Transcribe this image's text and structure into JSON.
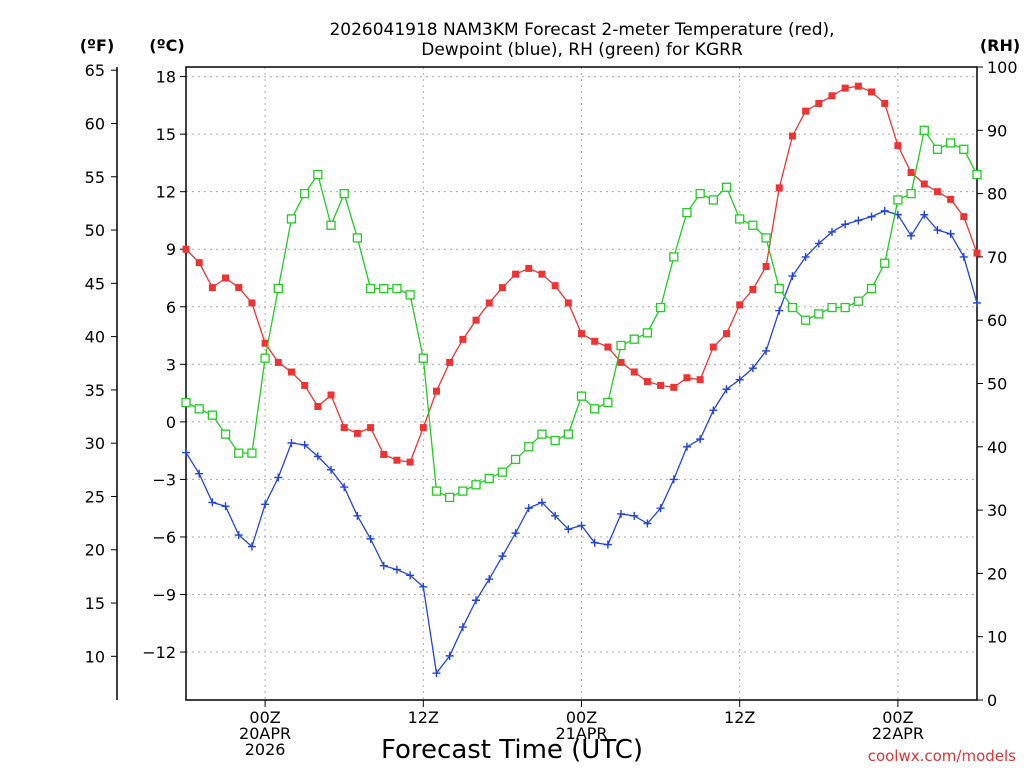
{
  "title_line1": "2026041918 NAM3KM Forecast 2-meter Temperature (red),",
  "title_line2": "Dewpoint (blue), RH (green) for KGRR",
  "units": {
    "left_f": "(ºF)",
    "left_c": "(ºC)",
    "right_rh": "(RH)"
  },
  "xlabel": "Forecast Time (UTC)",
  "watermark": "coolwx.com/models",
  "colors": {
    "temperature": "#ee3333",
    "dewpoint": "#2244dd",
    "rh": "#22cc22",
    "grid": "#aaaaaa"
  },
  "chart_data": {
    "type": "line",
    "title": "2026041918 NAM3KM Forecast 2-meter Temperature (red), Dewpoint (blue), RH (green) for KGRR",
    "xlabel": "Forecast Time (UTC)",
    "x_unit": "hours since 2026-04-19 18Z",
    "xlim": [
      0,
      60
    ],
    "grid": true,
    "x_ticks": [
      {
        "x": 6,
        "lines": [
          "00Z",
          "20APR",
          "2026"
        ]
      },
      {
        "x": 18,
        "lines": [
          "12Z"
        ]
      },
      {
        "x": 30,
        "lines": [
          "00Z",
          "21APR"
        ]
      },
      {
        "x": 42,
        "lines": [
          "12Z"
        ]
      },
      {
        "x": 54,
        "lines": [
          "00Z",
          "22APR"
        ]
      }
    ],
    "axes": {
      "celsius": {
        "label": "(ºC)",
        "ylim": [
          -14.5,
          18.5
        ],
        "ticks": [
          18,
          15,
          12,
          9,
          6,
          3,
          0,
          -3,
          -6,
          -9,
          -12
        ],
        "tick_labels": [
          "18",
          "15",
          "12",
          "9",
          "6",
          "3",
          "0",
          "−3",
          "−6",
          "−9",
          "−12"
        ]
      },
      "fahrenheit": {
        "label": "(ºF)",
        "ticks": [
          65,
          60,
          55,
          50,
          45,
          40,
          35,
          30,
          25,
          20,
          15,
          10
        ]
      },
      "rh": {
        "label": "(RH)",
        "ylim": [
          0,
          100
        ],
        "ticks": [
          100,
          90,
          80,
          70,
          60,
          50,
          40,
          30,
          20,
          10,
          0
        ]
      }
    },
    "series": [
      {
        "key": "temperature",
        "axis": "celsius",
        "marker": "filled-square",
        "values": [
          9.0,
          8.3,
          7.0,
          7.5,
          7.0,
          6.2,
          4.1,
          3.1,
          2.6,
          1.9,
          0.8,
          1.4,
          -0.3,
          -0.6,
          -0.3,
          -1.7,
          -2.0,
          -2.1,
          -0.3,
          1.6,
          3.1,
          4.3,
          5.3,
          6.2,
          7.0,
          7.7,
          8.0,
          7.7,
          7.1,
          6.2,
          4.6,
          4.2,
          3.9,
          3.1,
          2.6,
          2.1,
          1.9,
          1.8,
          2.3,
          2.2,
          3.9,
          4.6,
          6.1,
          6.9,
          8.1,
          12.2,
          14.9,
          16.2,
          16.6,
          17.0,
          17.4,
          17.5,
          17.2,
          16.6,
          14.4,
          13.0,
          12.4,
          12.0,
          11.6,
          10.7,
          8.8
        ]
      },
      {
        "key": "dewpoint",
        "axis": "celsius",
        "marker": "plus",
        "values": [
          -1.6,
          -2.7,
          -4.2,
          -4.4,
          -5.9,
          -6.5,
          -4.3,
          -2.9,
          -1.1,
          -1.2,
          -1.8,
          -2.5,
          -3.4,
          -4.9,
          -6.1,
          -7.5,
          -7.7,
          -8.0,
          -8.6,
          -13.1,
          -12.2,
          -10.7,
          -9.3,
          -8.2,
          -7.0,
          -5.8,
          -4.5,
          -4.2,
          -4.9,
          -5.6,
          -5.4,
          -6.3,
          -6.4,
          -4.8,
          -4.9,
          -5.3,
          -4.5,
          -3.0,
          -1.3,
          -0.9,
          0.6,
          1.7,
          2.2,
          2.8,
          3.7,
          5.8,
          7.6,
          8.6,
          9.3,
          9.9,
          10.3,
          10.5,
          10.7,
          11.0,
          10.8,
          9.7,
          10.8,
          10.0,
          9.8,
          8.6,
          6.2
        ]
      },
      {
        "key": "rh",
        "axis": "rh",
        "marker": "open-square",
        "values": [
          47,
          46,
          45,
          42,
          39,
          39,
          54,
          65,
          76,
          80,
          83,
          75,
          80,
          73,
          65,
          65,
          65,
          64,
          54,
          33,
          32,
          33,
          34,
          35,
          36,
          38,
          40,
          42,
          41,
          42,
          48,
          46,
          47,
          56,
          57,
          58,
          62,
          70,
          77,
          80,
          79,
          81,
          76,
          75,
          73,
          65,
          62,
          60,
          61,
          62,
          62,
          63,
          65,
          69,
          79,
          80,
          90,
          87,
          88,
          87,
          83
        ]
      }
    ]
  }
}
